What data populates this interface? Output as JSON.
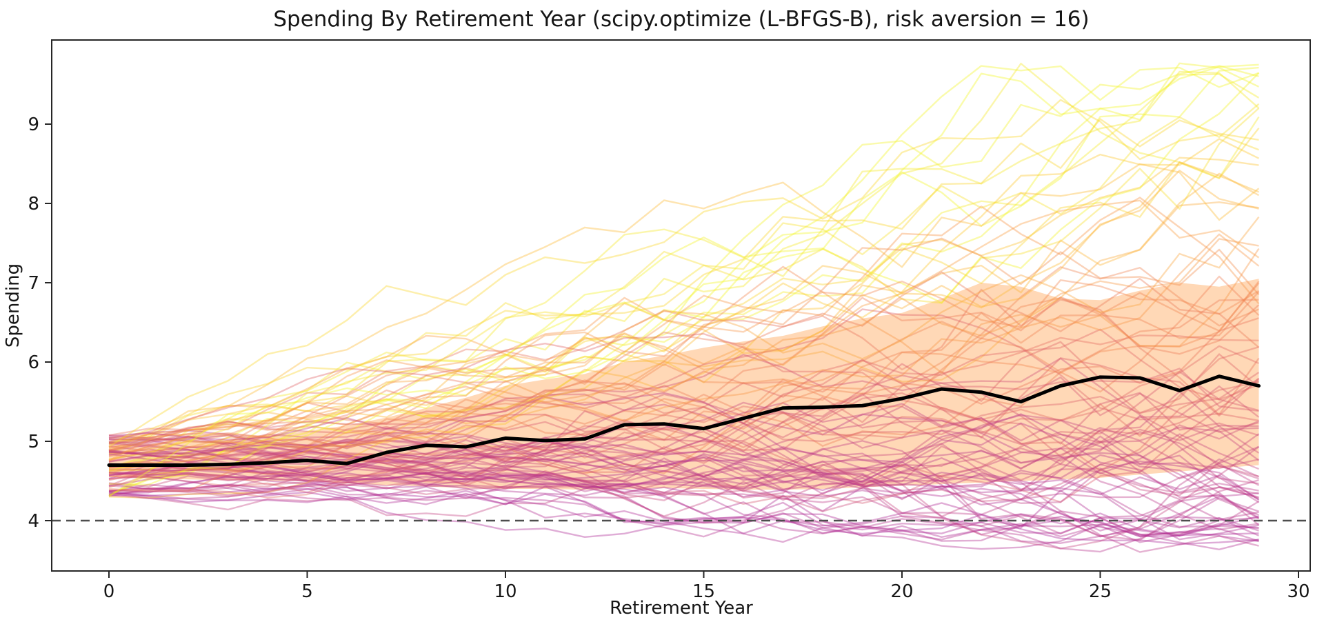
{
  "chart_data": {
    "type": "line",
    "title": "Spending By Retirement Year (scipy.optimize (L-BFGS-B), risk aversion = 16)",
    "xlabel": "Retirement Year",
    "ylabel": "Spending",
    "x_ticks": [
      0,
      5,
      10,
      15,
      20,
      25,
      30
    ],
    "y_ticks": [
      4,
      5,
      6,
      7,
      8,
      9
    ],
    "xlim": [
      -1.45,
      30.3
    ],
    "ylim": [
      3.37,
      10.06
    ],
    "x": [
      0,
      1,
      2,
      3,
      4,
      5,
      6,
      7,
      8,
      9,
      10,
      11,
      12,
      13,
      14,
      15,
      16,
      17,
      18,
      19,
      20,
      21,
      22,
      23,
      24,
      25,
      26,
      27,
      28,
      29
    ],
    "series": [
      {
        "name": "median_spending",
        "style": "thick_black_line",
        "values": [
          4.7,
          4.7,
          4.7,
          4.71,
          4.73,
          4.76,
          4.72,
          4.86,
          4.95,
          4.93,
          5.04,
          5.01,
          5.03,
          5.21,
          5.22,
          5.16,
          5.29,
          5.42,
          5.43,
          5.45,
          5.54,
          5.66,
          5.62,
          5.5,
          5.7,
          5.81,
          5.8,
          5.64,
          5.82,
          5.7
        ]
      },
      {
        "name": "band_upper",
        "style": "shaded_band_edge",
        "values": [
          4.95,
          4.97,
          5.0,
          5.02,
          5.07,
          5.13,
          5.2,
          5.3,
          5.42,
          5.55,
          5.7,
          5.78,
          5.85,
          6.0,
          6.08,
          6.18,
          6.26,
          6.33,
          6.45,
          6.55,
          6.62,
          6.8,
          7.0,
          6.95,
          6.8,
          6.78,
          6.9,
          7.0,
          6.95,
          7.05
        ]
      },
      {
        "name": "band_lower",
        "style": "shaded_band_edge",
        "values": [
          4.55,
          4.53,
          4.52,
          4.51,
          4.5,
          4.5,
          4.47,
          4.45,
          4.43,
          4.41,
          4.4,
          4.4,
          4.39,
          4.4,
          4.41,
          4.4,
          4.39,
          4.39,
          4.4,
          4.42,
          4.44,
          4.46,
          4.48,
          4.5,
          4.52,
          4.54,
          4.58,
          4.62,
          4.66,
          4.7
        ]
      },
      {
        "name": "baseline_reference",
        "style": "dashed_gray_horizontal",
        "value": 4.0
      }
    ],
    "simulation_paths": {
      "description": "monte-carlo spending trajectories, colored yellow(high) to purple(low)",
      "n_paths": 100,
      "seed": 12,
      "start_range": [
        4.3,
        5.1
      ],
      "value_floor": 3.6,
      "value_cap": 9.8,
      "observed_max_peak": 9.63,
      "observed_max_end": 9.8
    },
    "legend": "none",
    "grid": "off",
    "colors": {
      "median": "#000000",
      "baseline": "#4d4d4d",
      "band_fill": "#ff7f0e",
      "band_alpha": 0.3,
      "path_alpha": 0.38,
      "path_colormap": [
        "#9c179e",
        "#bd3786",
        "#d8576b",
        "#ed7953",
        "#fb9f3a",
        "#fdca26",
        "#f0f921"
      ],
      "frame": "#262626"
    }
  }
}
